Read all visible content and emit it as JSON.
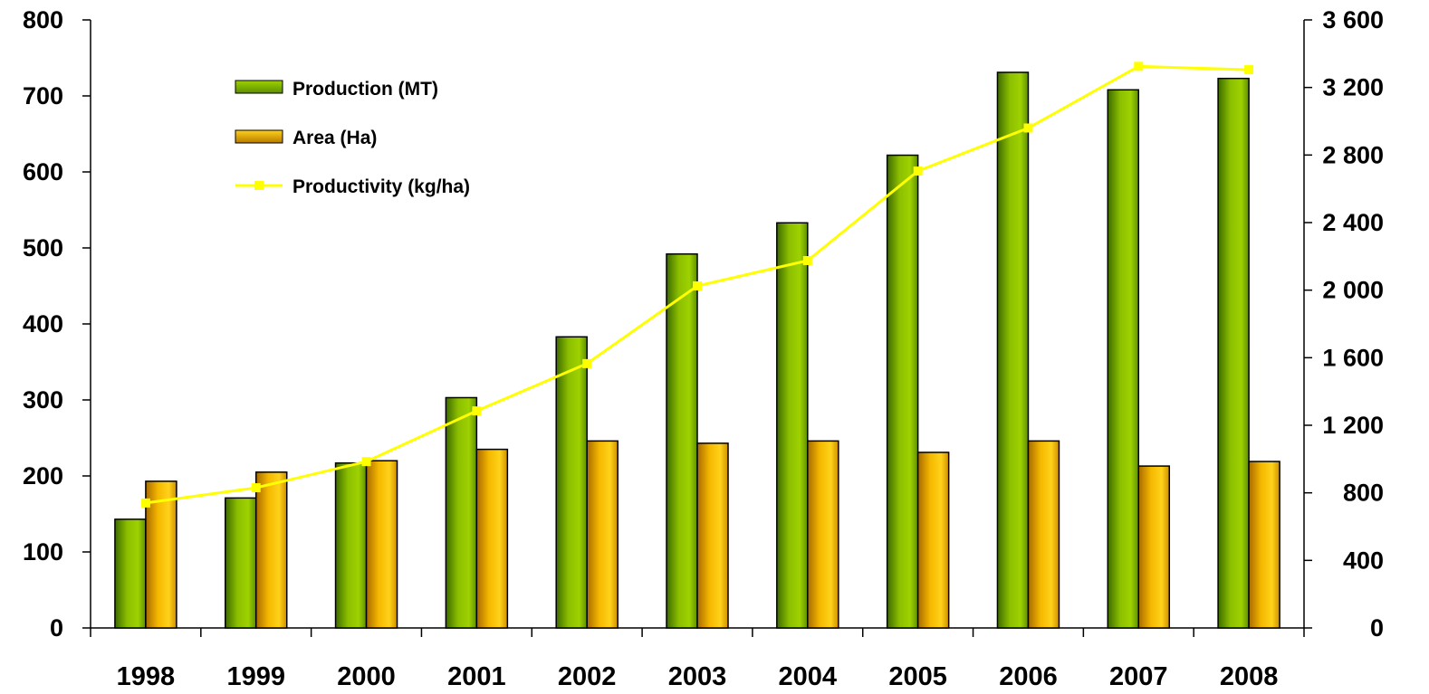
{
  "chart_data": {
    "type": "bar",
    "title": "",
    "xlabel": "",
    "ylabel": "",
    "y2label": "",
    "categories": [
      "1998",
      "1999",
      "2000",
      "2001",
      "2002",
      "2003",
      "2004",
      "2005",
      "2006",
      "2007",
      "2008"
    ],
    "series": [
      {
        "name": "Production (MT)",
        "type": "bar",
        "axis": "left",
        "color": "#8ab800",
        "values": [
          143,
          171,
          217,
          303,
          383,
          492,
          533,
          622,
          731,
          708,
          723
        ]
      },
      {
        "name": "Area (Ha)",
        "type": "bar",
        "axis": "left",
        "color": "#f2b600",
        "values": [
          193,
          205,
          220,
          235,
          246,
          243,
          246,
          231,
          246,
          213,
          219
        ]
      },
      {
        "name": "Productivity (kg/ha)",
        "type": "line",
        "axis": "right",
        "color": "#ffff00",
        "values": [
          740,
          830,
          985,
          1285,
          1565,
          2025,
          2175,
          2705,
          2960,
          3325,
          3305
        ]
      }
    ],
    "ylim": [
      0,
      800
    ],
    "yticks": [
      "0",
      "100",
      "200",
      "300",
      "400",
      "500",
      "600",
      "700",
      "800"
    ],
    "y2lim": [
      0,
      3600
    ],
    "y2ticks": [
      "0",
      "400",
      "800",
      "1 200",
      "1 600",
      "2 000",
      "2 400",
      "2 800",
      "3 200",
      "3 600"
    ],
    "grid": false,
    "legend_position": "top-left"
  }
}
